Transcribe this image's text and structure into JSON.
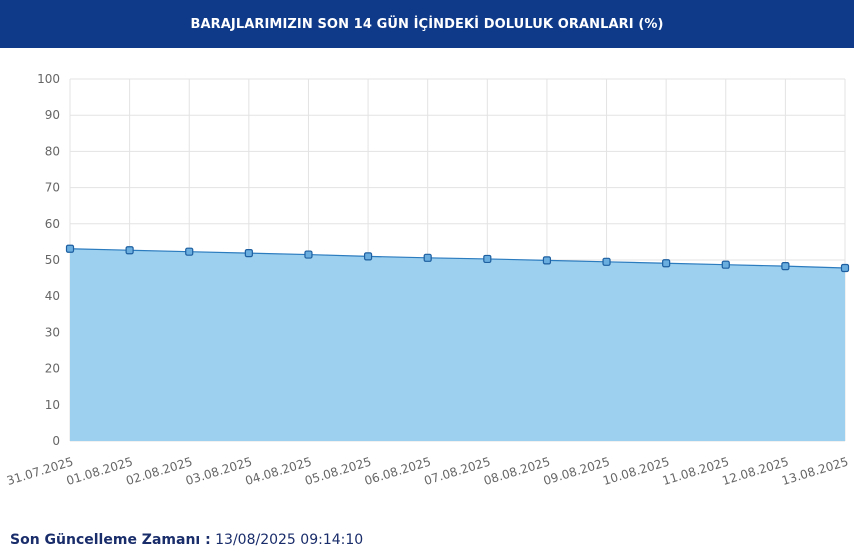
{
  "header": {
    "title": "BARAJLARIMIZIN SON 14 GÜN İÇİNDEKİ DOLULUK ORANLARI (%)"
  },
  "footer": {
    "label": "Son Güncelleme Zamanı :",
    "value": "13/08/2025 09:14:10"
  },
  "colors": {
    "header_bg": "#0f3a8a",
    "area_fill": "#9dd0ee",
    "line": "#2b7bbf",
    "marker_fill": "#6aaee0",
    "marker_stroke": "#1d5fa0",
    "grid": "#e3e3e3",
    "footer_text": "#1a2d6b"
  },
  "chart_data": {
    "type": "area",
    "title": "BARAJLARIMIZIN SON 14 GÜN İÇİNDEKİ DOLULUK ORANLARI (%)",
    "xlabel": "",
    "ylabel": "",
    "ylim": [
      0,
      100
    ],
    "yticks": [
      0,
      10,
      20,
      30,
      40,
      50,
      60,
      70,
      80,
      90,
      100
    ],
    "grid": true,
    "categories": [
      "31.07.2025",
      "01.08.2025",
      "02.08.2025",
      "03.08.2025",
      "04.08.2025",
      "05.08.2025",
      "06.08.2025",
      "07.08.2025",
      "08.08.2025",
      "09.08.2025",
      "10.08.2025",
      "11.08.2025",
      "12.08.2025",
      "13.08.2025"
    ],
    "series": [
      {
        "values": [
          53.1,
          52.7,
          52.3,
          51.9,
          51.5,
          51.0,
          50.6,
          50.3,
          49.9,
          49.5,
          49.1,
          48.7,
          48.3,
          47.8
        ]
      }
    ]
  }
}
